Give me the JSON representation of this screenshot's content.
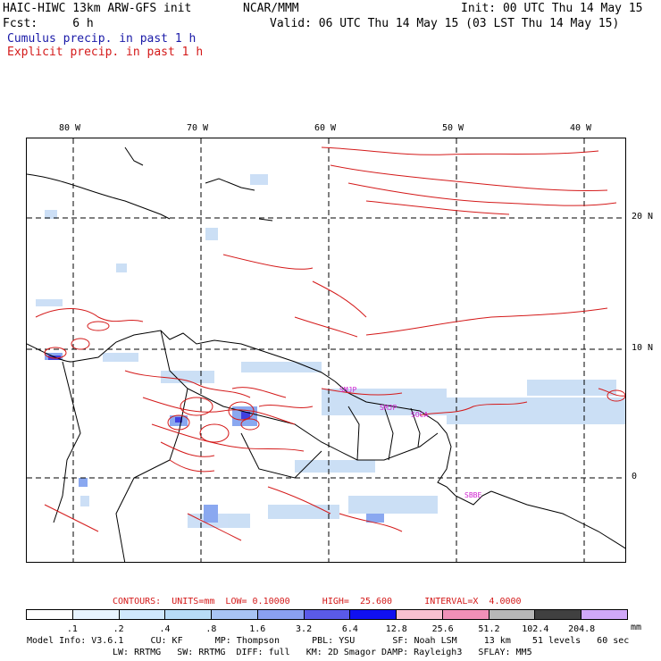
{
  "header": {
    "line1_left": "HAIC-HIWC 13km ARW-GFS init",
    "line1_mid": "NCAR/MMM",
    "line1_right": "Init: 00 UTC Thu 14 May 15",
    "line2_left": "Fcst:     6 h",
    "line2_right": "Valid: 06 UTC Thu 14 May 15 (03 LST Thu 14 May 15)",
    "legend_cumulus": "Cumulus precip. in past 1 h",
    "legend_explicit": "Explicit precip. in past 1 h"
  },
  "map": {
    "lon_labels": [
      "80 W",
      "70 W",
      "60 W",
      "50 W",
      "40 W"
    ],
    "lat_labels": [
      "20 N",
      "10 N",
      "0"
    ],
    "stations": [
      "SMJP",
      "SMJP",
      "SOCA",
      "SBBE"
    ],
    "colors": {
      "explicit_contour": "#d41a1a",
      "cumulus_light": "#c6dcf5",
      "cumulus_mid": "#8aa8f0",
      "cumulus_heavy": "#4040e0",
      "coast": "#000000",
      "station": "#d020d0"
    }
  },
  "contours_line": {
    "label": "CONTOURS:  UNITS=mm  LOW= 0.10000      HIGH=  25.600      INTERVAL=X  4.0000"
  },
  "colorbar": {
    "labels": [
      ".1",
      ".2",
      ".4",
      ".8",
      "1.6",
      "3.2",
      "6.4",
      "12.8",
      "25.6",
      "51.2",
      "102.4",
      "204.8"
    ],
    "unit": "mm",
    "colors": [
      "#ffffff",
      "#e8f4ff",
      "#d0e8fc",
      "#b8dcf6",
      "#a8c4f4",
      "#8aa0f0",
      "#5a5ae8",
      "#1010f0",
      "#f8c0d0",
      "#f090b8",
      "#b8b8b8",
      "#404040",
      "#d0a8f8"
    ]
  },
  "footer": {
    "line1": "Model Info: V3.6.1     CU: KF      MP: Thompson      PBL: YSU       SF: Noah LSM     13 km    51 levels   60 sec",
    "line2": "LW: RRTMG   SW: RRTMG  DIFF: full   KM: 2D Smagor DAMP: Rayleigh3   SFLAY: MM5"
  }
}
